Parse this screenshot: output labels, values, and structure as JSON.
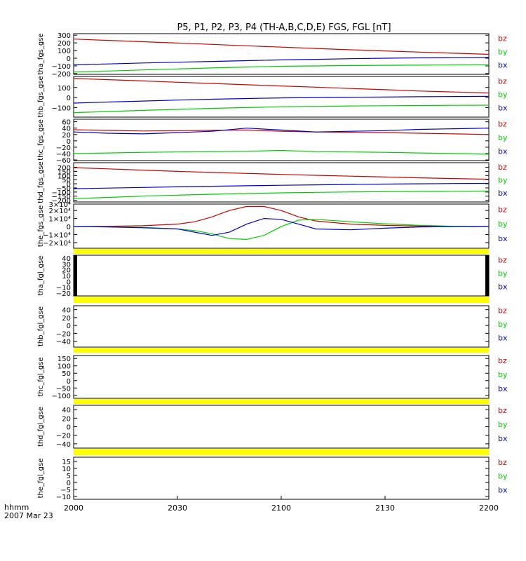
{
  "title": "P5, P1, P2, P3, P4 (TH-A,B,C,D,E) FGS, FGL [nT]",
  "time_axis": {
    "label_line1": "hhmm",
    "label_line2": "2007 Mar 23",
    "ticks": [
      "2000",
      "2030",
      "2100",
      "2130",
      "2200"
    ],
    "tick_minutes": [
      0,
      30,
      60,
      90,
      120
    ],
    "range_minutes": [
      0,
      120
    ]
  },
  "colors": {
    "bz": "#cc0000",
    "by": "#00cc00",
    "bx": "#0000cc",
    "flag": "#ffff00",
    "text": "#000000"
  },
  "legend": [
    "bz",
    "by",
    "bx"
  ],
  "chart_data": [
    {
      "type": "line",
      "ylabel": "tha_fgs_gse",
      "ylim": [
        -210,
        320
      ],
      "ytick_values": [
        300,
        200,
        100,
        0,
        -100,
        -200
      ],
      "ytick_labels": [
        "300",
        "200",
        "100",
        "0",
        "−100",
        "−200"
      ],
      "x": [
        0,
        10,
        20,
        30,
        40,
        50,
        60,
        70,
        80,
        90,
        100,
        110,
        120
      ],
      "series": [
        {
          "name": "bz",
          "values": [
            250,
            232,
            215,
            198,
            180,
            162,
            145,
            127,
            110,
            95,
            80,
            65,
            50
          ]
        },
        {
          "name": "by",
          "values": [
            -180,
            -167,
            -152,
            -140,
            -127,
            -115,
            -105,
            -100,
            -95,
            -92,
            -90,
            -88,
            -85
          ]
        },
        {
          "name": "bx",
          "values": [
            -85,
            -75,
            -62,
            -52,
            -42,
            -32,
            -22,
            -14,
            -6,
            0,
            5,
            7,
            10
          ]
        }
      ]
    },
    {
      "type": "line",
      "ylabel": "thb_fgs_gse",
      "ylim": [
        -195,
        210
      ],
      "ytick_values": [
        100,
        0,
        -100
      ],
      "ytick_labels": [
        "100",
        "0",
        "−100"
      ],
      "x": [
        0,
        10,
        20,
        30,
        40,
        50,
        60,
        70,
        80,
        90,
        100,
        110,
        120
      ],
      "series": [
        {
          "name": "bz",
          "values": [
            190,
            178,
            165,
            152,
            140,
            127,
            115,
            103,
            90,
            78,
            65,
            55,
            45
          ]
        },
        {
          "name": "by",
          "values": [
            -150,
            -140,
            -128,
            -118,
            -108,
            -100,
            -92,
            -88,
            -84,
            -82,
            -80,
            -78,
            -76
          ]
        },
        {
          "name": "bx",
          "values": [
            -55,
            -45,
            -35,
            -25,
            -17,
            -10,
            -4,
            0,
            3,
            5,
            8,
            10,
            12
          ]
        }
      ]
    },
    {
      "type": "line",
      "ylabel": "thc_fgs_gse",
      "ylim": [
        -62,
        68
      ],
      "ytick_values": [
        60,
        40,
        20,
        0,
        -20,
        -40,
        -60
      ],
      "ytick_labels": [
        "60",
        "40",
        "20",
        "0",
        "−20",
        "−40",
        "−60"
      ],
      "x": [
        0,
        10,
        20,
        30,
        40,
        50,
        60,
        70,
        80,
        90,
        100,
        110,
        120
      ],
      "series": [
        {
          "name": "bz",
          "values": [
            35,
            33,
            31,
            32,
            33,
            34,
            30,
            28,
            27,
            26,
            24,
            22,
            20
          ]
        },
        {
          "name": "by",
          "values": [
            -40,
            -38,
            -36,
            -35,
            -34,
            -33,
            -30,
            -34,
            -35,
            -36,
            -38,
            -40,
            -42
          ]
        },
        {
          "name": "bx",
          "values": [
            28,
            24,
            22,
            26,
            30,
            40,
            34,
            28,
            30,
            32,
            36,
            38,
            40
          ]
        }
      ]
    },
    {
      "type": "line",
      "ylabel": "thd_fgs_gse",
      "ylim": [
        -220,
        255
      ],
      "ytick_values": [
        200,
        150,
        100,
        50,
        0,
        -50,
        -100,
        -150,
        -200
      ],
      "ytick_labels": [
        "200",
        "150",
        "100",
        "50",
        "0",
        "−50",
        "−100",
        "−150",
        "−200"
      ],
      "x": [
        0,
        10,
        20,
        30,
        40,
        50,
        60,
        70,
        80,
        90,
        100,
        110,
        120
      ],
      "series": [
        {
          "name": "bz",
          "values": [
            195,
            180,
            165,
            150,
            137,
            125,
            113,
            102,
            92,
            82,
            72,
            63,
            55
          ]
        },
        {
          "name": "by",
          "values": [
            -180,
            -165,
            -150,
            -138,
            -127,
            -118,
            -110,
            -104,
            -99,
            -95,
            -92,
            -90,
            -88
          ]
        },
        {
          "name": "bx",
          "values": [
            -60,
            -52,
            -44,
            -37,
            -30,
            -24,
            -18,
            -13,
            -8,
            -4,
            0,
            3,
            5
          ]
        }
      ]
    },
    {
      "type": "line",
      "ylabel": "the_fgs_gse",
      "ylim": [
        -27000,
        28000
      ],
      "ytick_values": [
        20000,
        10000,
        0,
        -10000,
        -20000
      ],
      "ytick_labels": [
        "2×10⁴",
        "1×10⁴",
        "0",
        "−1×10⁴",
        "−2×10⁴"
      ],
      "extra_tick_label": "3×10⁴",
      "x": [
        0,
        10,
        20,
        30,
        35,
        40,
        45,
        50,
        55,
        60,
        65,
        70,
        80,
        90,
        100,
        110,
        120
      ],
      "series": [
        {
          "name": "bz",
          "values": [
            0,
            300,
            1000,
            3000,
            6000,
            12000,
            20000,
            25000,
            25000,
            20000,
            12000,
            7000,
            3000,
            1500,
            600,
            200,
            0
          ]
        },
        {
          "name": "by",
          "values": [
            0,
            -300,
            -1000,
            -3000,
            -5000,
            -9000,
            -15000,
            -16000,
            -11000,
            0,
            8000,
            9000,
            6000,
            3500,
            1500,
            300,
            0
          ]
        },
        {
          "name": "bx",
          "values": [
            0,
            -500,
            -1500,
            -3000,
            -7000,
            -11000,
            -7000,
            3000,
            10000,
            9000,
            3000,
            -3000,
            -4000,
            -2000,
            -500,
            -100,
            0
          ]
        }
      ]
    },
    {
      "type": "line",
      "ylabel": "tha_fgl_gse",
      "ylim": [
        -25,
        45
      ],
      "ytick_values": [
        40,
        30,
        20,
        10,
        0,
        -10,
        -20
      ],
      "ytick_labels": [
        "40",
        "30",
        "20",
        "10",
        "0",
        "−10",
        "−20"
      ],
      "series": []
    },
    {
      "type": "line",
      "ylabel": "thb_fgl_gse",
      "ylim": [
        -55,
        50
      ],
      "ytick_values": [
        40,
        20,
        0,
        -20,
        -40
      ],
      "ytick_labels": [
        "40",
        "20",
        "0",
        "−20",
        "−40"
      ],
      "series": []
    },
    {
      "type": "line",
      "ylabel": "thc_fgl_gse",
      "ylim": [
        -120,
        170
      ],
      "ytick_values": [
        150,
        100,
        50,
        0,
        -50,
        -100
      ],
      "ytick_labels": [
        "150",
        "100",
        "50",
        "0",
        "−50",
        "−100"
      ],
      "series": []
    },
    {
      "type": "line",
      "ylabel": "thd_fgl_gse",
      "ylim": [
        -50,
        50
      ],
      "ytick_values": [
        40,
        20,
        0,
        -20,
        -40
      ],
      "ytick_labels": [
        "40",
        "20",
        "0",
        "−20",
        "−40"
      ],
      "series": []
    },
    {
      "type": "line",
      "ylabel": "the_fgl_gse",
      "ylim": [
        -12,
        18
      ],
      "ytick_values": [
        15,
        10,
        5,
        0,
        -5,
        -10
      ],
      "ytick_labels": [
        "15",
        "10",
        "5",
        "0",
        "−5",
        "−10"
      ],
      "series": []
    }
  ]
}
